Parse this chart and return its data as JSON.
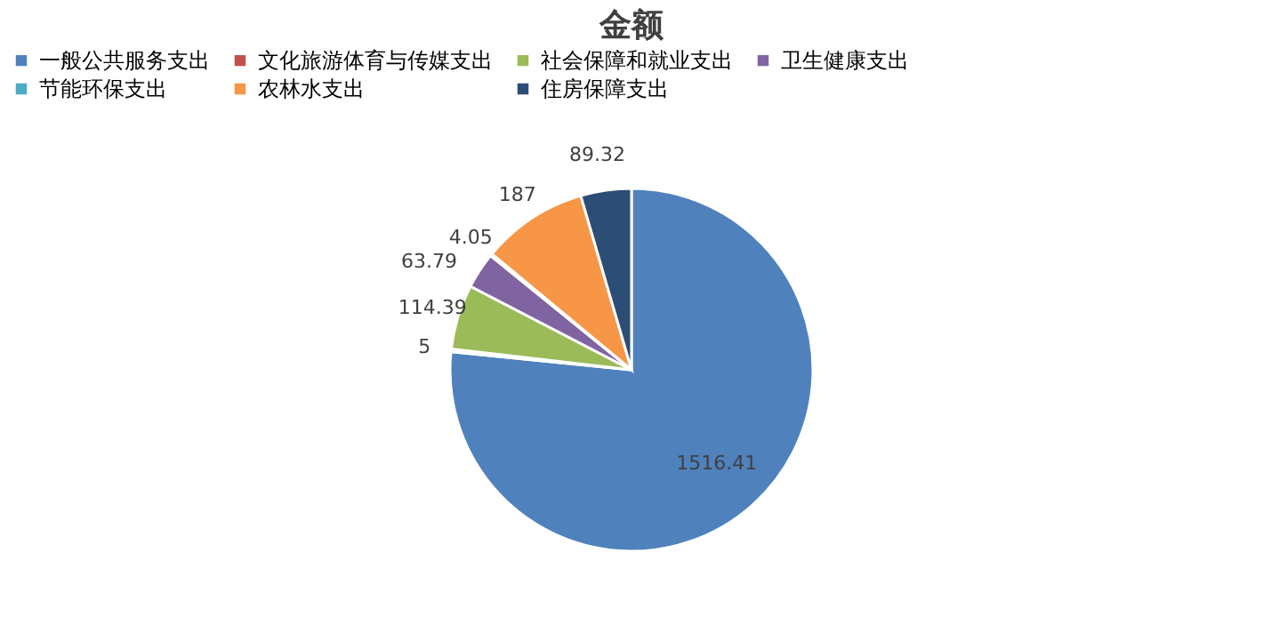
{
  "chart_data": {
    "type": "pie",
    "title": "金额",
    "categories": [
      "一般公共服务支出",
      "文化旅游体育与传媒支出",
      "社会保障和就业支出",
      "卫生健康支出",
      "节能环保支出",
      "农林水支出",
      "住房保障支出"
    ],
    "values": [
      1516.41,
      5,
      114.39,
      63.79,
      4.05,
      187,
      89.32
    ],
    "colors": [
      "#4f81bd",
      "#c0504d",
      "#9bbb59",
      "#8064a2",
      "#4bacc6",
      "#f79646",
      "#2c4d75"
    ],
    "data_labels": true,
    "legend": "top"
  }
}
